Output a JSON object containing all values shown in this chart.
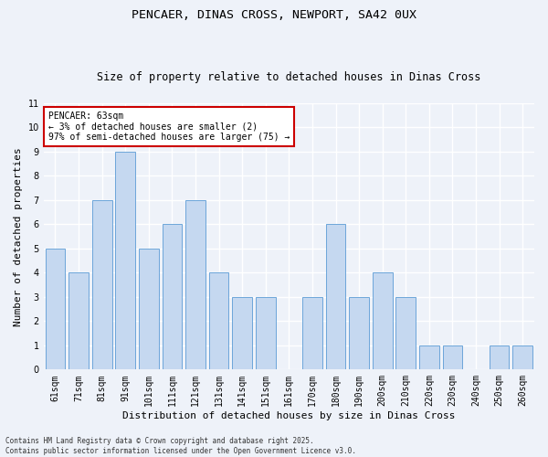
{
  "title1": "PENCAER, DINAS CROSS, NEWPORT, SA42 0UX",
  "title2": "Size of property relative to detached houses in Dinas Cross",
  "xlabel": "Distribution of detached houses by size in Dinas Cross",
  "ylabel": "Number of detached properties",
  "categories": [
    "61sqm",
    "71sqm",
    "81sqm",
    "91sqm",
    "101sqm",
    "111sqm",
    "121sqm",
    "131sqm",
    "141sqm",
    "151sqm",
    "161sqm",
    "170sqm",
    "180sqm",
    "190sqm",
    "200sqm",
    "210sqm",
    "220sqm",
    "230sqm",
    "240sqm",
    "250sqm",
    "260sqm"
  ],
  "values": [
    5,
    4,
    7,
    9,
    5,
    6,
    7,
    4,
    3,
    3,
    0,
    3,
    6,
    3,
    4,
    3,
    1,
    1,
    0,
    1,
    1
  ],
  "bar_color": "#c5d8f0",
  "bar_edge_color": "#5b9bd5",
  "ylim": [
    0,
    11
  ],
  "yticks": [
    0,
    1,
    2,
    3,
    4,
    5,
    6,
    7,
    8,
    9,
    10,
    11
  ],
  "annotation_text": "PENCAER: 63sqm\n← 3% of detached houses are smaller (2)\n97% of semi-detached houses are larger (75) →",
  "annotation_box_color": "#ffffff",
  "annotation_box_edge": "#cc0000",
  "footnote": "Contains HM Land Registry data © Crown copyright and database right 2025.\nContains public sector information licensed under the Open Government Licence v3.0.",
  "bg_color": "#eef2f9",
  "plot_bg_color": "#eef2f9",
  "grid_color": "#ffffff",
  "title_fontsize": 9.5,
  "subtitle_fontsize": 8.5,
  "tick_fontsize": 7,
  "label_fontsize": 8,
  "annot_fontsize": 7,
  "footnote_fontsize": 5.5
}
